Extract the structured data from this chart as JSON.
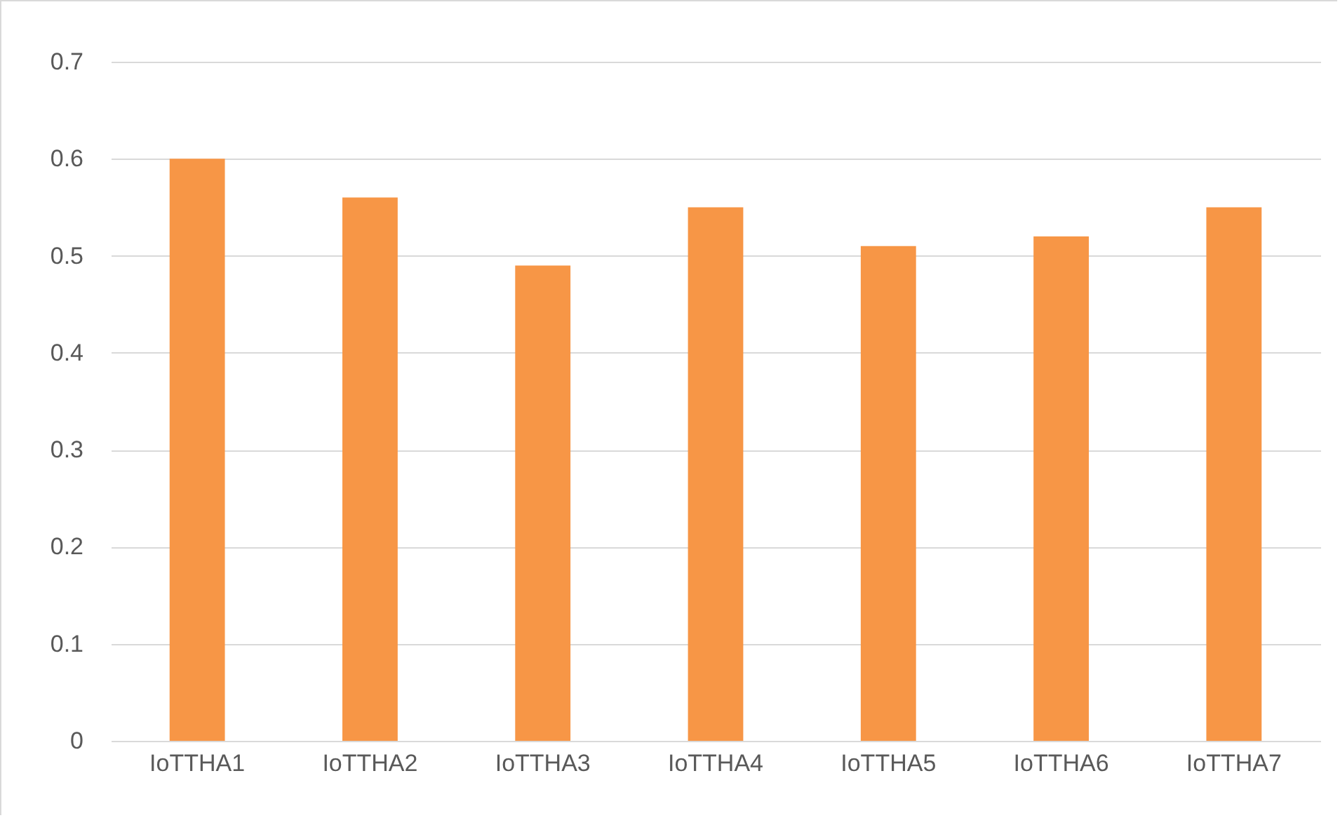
{
  "chart_data": {
    "type": "bar",
    "categories": [
      "IoTTHA1",
      "IoTTHA2",
      "IoTTHA3",
      "IoTTHA4",
      "IoTTHA5",
      "IoTTHA6",
      "IoTTHA7"
    ],
    "values": [
      0.6,
      0.56,
      0.49,
      0.55,
      0.51,
      0.52,
      0.55
    ],
    "color": "#f79646",
    "ylim": [
      0,
      0.7
    ],
    "yticks": [
      0,
      0.1,
      0.2,
      0.3,
      0.4,
      0.5,
      0.6,
      0.7
    ],
    "grid": "y"
  }
}
